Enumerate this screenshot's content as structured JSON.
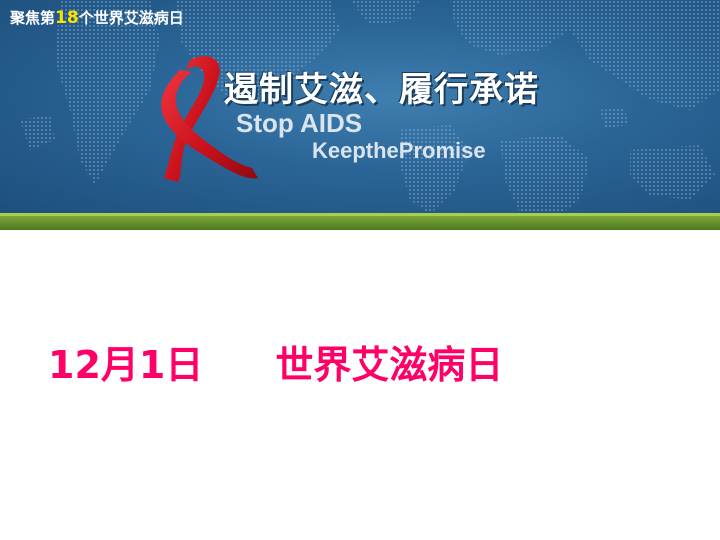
{
  "header": {
    "topic_prefix": "聚焦第",
    "topic_number": "18",
    "topic_suffix": "个世界艾滋病日",
    "slogan_cn": "遏制艾滋、履行承诺",
    "slogan_en_line1": "Stop AIDS",
    "slogan_en_line2": "KeepthePromise"
  },
  "body": {
    "date": "12月1日",
    "event": "世界艾滋病日"
  },
  "colors": {
    "banner_blue": "#2a6496",
    "accent_green": "#8cbf3a",
    "ribbon_red": "#d8141e",
    "headline_pink": "#ff0066",
    "highlight_yellow": "#ffe100"
  },
  "icons": [
    "red-ribbon-icon",
    "world-map-graphic"
  ]
}
